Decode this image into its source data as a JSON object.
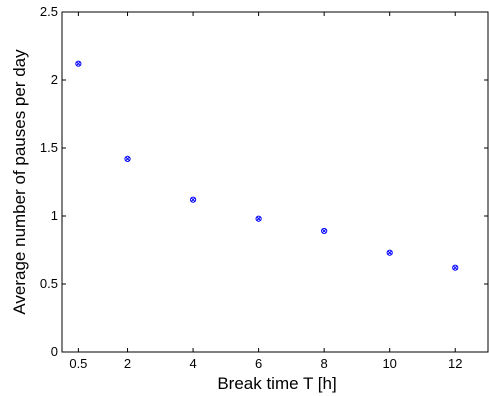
{
  "chart_data": {
    "type": "scatter",
    "title": "",
    "xlabel": "Break time T [h]",
    "ylabel": "Average number of pauses per day",
    "xlim": [
      0,
      13
    ],
    "ylim": [
      0,
      2.5
    ],
    "x_ticks": [
      0.5,
      2,
      4,
      6,
      8,
      10,
      12
    ],
    "x_tick_labels": [
      "0.5",
      "2",
      "4",
      "6",
      "8",
      "10",
      "12"
    ],
    "y_ticks": [
      0,
      0.5,
      1,
      1.5,
      2,
      2.5
    ],
    "y_tick_labels": [
      "0",
      "0.5",
      "1",
      "1.5",
      "2",
      "2.5"
    ],
    "grid": false,
    "legend": "none",
    "marker": "circle-x",
    "marker_color": "#0000ff",
    "series": [
      {
        "x": [
          0.5,
          2,
          4,
          6,
          8,
          10,
          12
        ],
        "y": [
          2.12,
          1.42,
          1.12,
          0.98,
          0.89,
          0.73,
          0.62
        ]
      }
    ]
  }
}
